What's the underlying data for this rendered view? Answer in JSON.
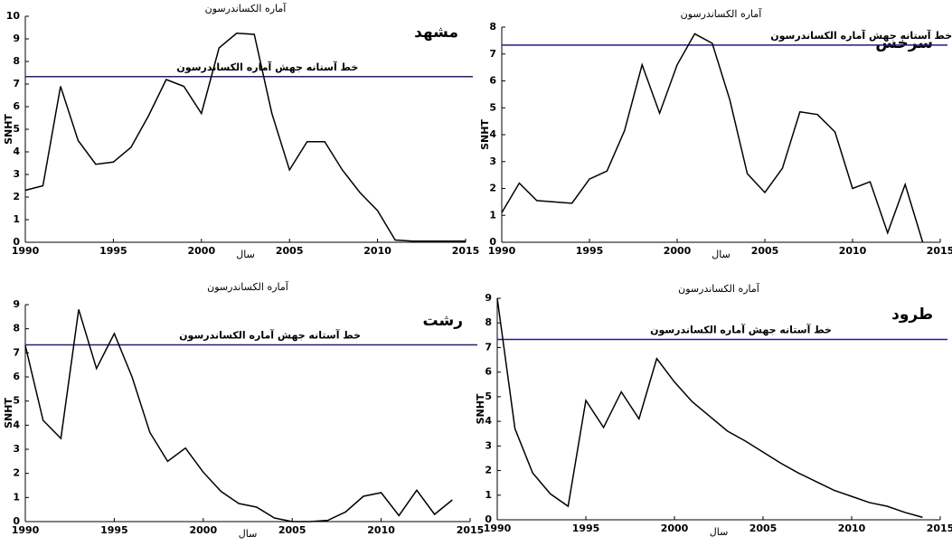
{
  "chart_data": [
    {
      "type": "line",
      "title": "آماره الکساندرسون",
      "station": "مشهد",
      "xlabel": "سال",
      "ylabel": "SNHT",
      "x": [
        1990,
        1991,
        1992,
        1993,
        1994,
        1995,
        1996,
        1997,
        1998,
        1999,
        2000,
        2001,
        2002,
        2003,
        2004,
        2005,
        2006,
        2007,
        2008,
        2009,
        2010,
        2011,
        2012,
        2013,
        2014,
        2015
      ],
      "series": [
        {
          "name": "SNHT",
          "color": "#000000",
          "values": [
            2.3,
            2.5,
            6.9,
            4.5,
            3.45,
            3.55,
            4.2,
            5.6,
            7.2,
            6.9,
            5.7,
            8.6,
            9.25,
            9.2,
            5.7,
            3.2,
            4.45,
            4.45,
            3.2,
            2.2,
            1.4,
            0.1,
            0.05,
            0.05,
            0.05,
            0.05
          ]
        }
      ],
      "threshold": 7.33,
      "threshold_label": "خط آستانه جهش آماره الکساندرسون",
      "threshold_color": "#1f1f7a",
      "xlim": [
        1990,
        2015
      ],
      "xticks": [
        1990,
        1995,
        2000,
        2005,
        2010,
        2015
      ],
      "ylim": [
        0,
        10
      ],
      "yticks": [
        0,
        1,
        2,
        3,
        4,
        5,
        6,
        7,
        8,
        9,
        10
      ]
    },
    {
      "type": "line",
      "title": "آماره الکساندرسون",
      "station": "سرخس",
      "xlabel": "سال",
      "ylabel": "SNHT",
      "x": [
        1990,
        1991,
        1992,
        1993,
        1994,
        1995,
        1996,
        1997,
        1998,
        1999,
        2000,
        2001,
        2002,
        2003,
        2004,
        2005,
        2006,
        2007,
        2008,
        2009,
        2010,
        2011,
        2012,
        2013,
        2014
      ],
      "series": [
        {
          "name": "SNHT",
          "color": "#000000",
          "values": [
            1.1,
            2.2,
            1.55,
            1.5,
            1.45,
            2.35,
            2.65,
            4.15,
            6.6,
            4.8,
            6.6,
            7.75,
            7.4,
            5.3,
            2.55,
            1.85,
            2.75,
            4.85,
            4.75,
            4.1,
            2.0,
            2.25,
            0.35,
            2.15,
            0
          ]
        }
      ],
      "threshold": 7.33,
      "threshold_label": "خط آستانه جهش آماره الکساندرسون",
      "threshold_color": "#1f1f7a",
      "xlim": [
        1990,
        2015
      ],
      "xticks": [
        1990,
        1995,
        2000,
        2005,
        2010,
        2015
      ],
      "ylim": [
        0,
        8
      ],
      "yticks": [
        0,
        1,
        2,
        3,
        4,
        5,
        6,
        7,
        8
      ]
    },
    {
      "type": "line",
      "title": "آماره الکساندرسون",
      "station": "رشت",
      "xlabel": "سال",
      "ylabel": "SNHT",
      "x": [
        1990,
        1991,
        1992,
        1993,
        1994,
        1995,
        1996,
        1997,
        1998,
        1999,
        2000,
        2001,
        2002,
        2003,
        2004,
        2005,
        2006,
        2007,
        2008,
        2009,
        2010,
        2011,
        2012,
        2013,
        2014
      ],
      "series": [
        {
          "name": "SNHT",
          "color": "#000000",
          "values": [
            7.3,
            4.2,
            3.45,
            8.8,
            6.35,
            7.8,
            6.0,
            3.7,
            2.5,
            3.05,
            2.05,
            1.25,
            0.75,
            0.6,
            0.15,
            0,
            0,
            0.05,
            0.4,
            1.05,
            1.2,
            0.25,
            1.3,
            0.3,
            0.9
          ]
        }
      ],
      "threshold": 7.33,
      "threshold_label": "خط آستانه جهش آماره الکساندرسون",
      "threshold_color": "#1f1f7a",
      "xlim": [
        1990,
        2015
      ],
      "xticks": [
        1990,
        1995,
        2000,
        2005,
        2010,
        2015
      ],
      "ylim": [
        0,
        9
      ],
      "yticks": [
        0,
        1,
        2,
        3,
        4,
        5,
        6,
        7,
        8,
        9
      ]
    },
    {
      "type": "line",
      "title": "آماره الکساندرسون",
      "station": "طرود",
      "xlabel": "سال",
      "ylabel": "SNHT",
      "x": [
        1990,
        1991,
        1992,
        1993,
        1994,
        1995,
        1996,
        1997,
        1998,
        1999,
        2000,
        2001,
        2002,
        2003,
        2004,
        2005,
        2006,
        2007,
        2008,
        2009,
        2010,
        2011,
        2012,
        2013,
        2014
      ],
      "series": [
        {
          "name": "SNHT",
          "color": "#000000",
          "values": [
            9.0,
            3.7,
            1.9,
            1.05,
            0.55,
            4.85,
            3.75,
            5.2,
            4.1,
            6.55,
            5.6,
            4.8,
            4.2,
            3.6,
            3.2,
            2.75,
            2.3,
            1.9,
            1.55,
            1.2,
            0.95,
            0.7,
            0.55,
            0.3,
            0.1
          ]
        }
      ],
      "threshold": 7.33,
      "threshold_label": "خط آستانه جهش آماره الکساندرسون",
      "threshold_color": "#1f1f7a",
      "xlim": [
        1990,
        2015
      ],
      "xticks": [
        1990,
        1995,
        2000,
        2005,
        2010,
        2015
      ],
      "ylim": [
        0,
        9
      ],
      "yticks": [
        0,
        1,
        2,
        3,
        4,
        5,
        6,
        7,
        8,
        9
      ]
    }
  ]
}
